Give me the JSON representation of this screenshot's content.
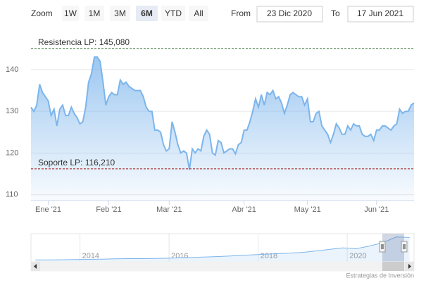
{
  "chart_data": {
    "type": "area",
    "color": "#7cb5ec",
    "values": [
      131,
      130,
      131.5,
      136.5,
      134.5,
      133.5,
      132.5,
      129,
      130.5,
      126.5,
      130.5,
      131.5,
      129,
      129,
      131,
      129.5,
      128.5,
      127,
      127.5,
      131,
      137,
      139,
      143,
      143,
      142,
      137,
      131.5,
      133.5,
      134.5,
      134,
      134,
      137.5,
      136.5,
      137,
      136,
      135.5,
      135,
      135,
      135,
      133.5,
      131,
      130,
      130,
      125.5,
      125.5,
      125,
      122,
      120.5,
      121,
      127.5,
      125,
      122,
      120,
      120.5,
      120,
      116,
      121,
      120,
      121,
      120.5,
      124,
      125.5,
      124.5,
      120,
      119.5,
      123,
      122.5,
      120,
      120.5,
      121,
      121,
      119.8,
      122,
      122.5,
      125.5,
      125.5,
      127.5,
      130,
      133,
      131,
      134,
      131.5,
      134.5,
      134,
      135,
      133,
      133.5,
      132,
      129.5,
      131.5,
      134,
      134.5,
      134,
      133.5,
      133.5,
      131.5,
      133,
      127.5,
      127.5,
      129.5,
      130,
      126.5,
      125.5,
      124.5,
      122.5,
      124.5,
      127,
      126,
      124.5,
      124.5,
      126.5,
      125.5,
      127,
      126.5,
      126.5,
      124.5,
      124,
      124,
      124.5,
      123,
      125.5,
      125.5,
      126.5,
      126.5,
      126,
      125.5,
      126.5,
      127,
      130.5,
      129.5,
      130,
      130,
      131.5,
      132
    ],
    "xlim": [
      0,
      133
    ],
    "xticks": [
      {
        "value": 6,
        "label": "Ene '21"
      },
      {
        "value": 27,
        "label": "Feb '21"
      },
      {
        "value": 48,
        "label": "Mar '21"
      },
      {
        "value": 74,
        "label": "Abr '21"
      },
      {
        "value": 96,
        "label": "May '21"
      },
      {
        "value": 120,
        "label": "Jun '21"
      }
    ],
    "ylim": [
      108.6,
      149.1
    ],
    "yticks": [
      110,
      120,
      130,
      140
    ],
    "grid": true,
    "plot_lines": [
      {
        "value": 145.08,
        "label": "Resistencia LP: 145,080",
        "color": "#2e6b2e"
      },
      {
        "value": 116.21,
        "label": "Soporte LP: 116,210",
        "color": "#a31515"
      }
    ],
    "range_selector": {
      "zoom_label": "Zoom",
      "buttons": [
        "1W",
        "1M",
        "3M",
        "6M",
        "YTD",
        "All"
      ],
      "selected": 3,
      "from_label": "From",
      "from": "23 Dic 2020",
      "to_label": "To",
      "to": "17 Jun 2021"
    },
    "navigator": {
      "x": [
        2013,
        2013.3,
        2013.6,
        2013.9,
        2014.2,
        2014.5,
        2014.8,
        2015.1,
        2015.4,
        2015.7,
        2016,
        2016.3,
        2016.6,
        2016.9,
        2017.2,
        2017.5,
        2017.8,
        2018.1,
        2018.4,
        2018.7,
        2019,
        2019.3,
        2019.6,
        2019.9,
        2020.2,
        2020.5,
        2020.8,
        2021.1,
        2021.4
      ],
      "values": [
        38,
        38,
        39,
        40,
        41,
        42,
        43,
        44,
        44,
        45,
        46,
        48,
        50,
        52,
        54,
        57,
        60,
        63,
        66,
        68,
        72,
        78,
        85,
        92,
        88,
        100,
        115,
        140,
        138
      ],
      "xlim": [
        2012.9,
        2021.5
      ],
      "ylim": [
        30,
        155
      ],
      "xticks": [
        2014,
        2016,
        2018,
        2020
      ]
    },
    "credits": "Estrategias de Inversión"
  }
}
